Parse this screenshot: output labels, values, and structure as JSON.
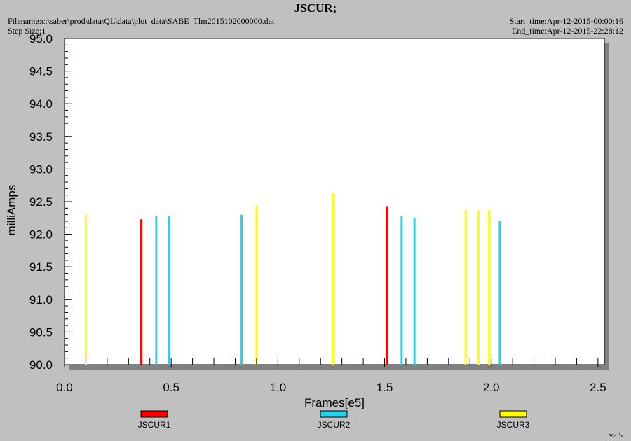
{
  "header": {
    "title": "JSCUR;",
    "filename": "Filename:c:\\saber\\prod\\data\\QL\\data\\plot_data\\SABE_Tlm2015102000000.dat",
    "step_size": "Step Size:1",
    "start_time": "Start_time:Apr-12-2015-00:00:16",
    "end_time": "End_time:Apr-12-2015-22:28:12"
  },
  "footer": {
    "version": "v2.5"
  },
  "colors": {
    "plot_bg": "#ffffff",
    "shadow": "#808080",
    "page_bg": "#c0c0c0"
  },
  "chart_data": {
    "type": "bar",
    "title": "JSCUR;",
    "xlabel": "Frames[e5]",
    "ylabel": "milliAmps",
    "xlim": [
      0.0,
      2.53
    ],
    "ylim": [
      90.0,
      95.0
    ],
    "x_ticks": [
      "0.0",
      "0.5",
      "1.0",
      "1.5",
      "2.0",
      "2.5"
    ],
    "x_tick_values": [
      0.0,
      0.5,
      1.0,
      1.5,
      2.0,
      2.5
    ],
    "y_ticks": [
      "90.0",
      "90.5",
      "91.0",
      "91.5",
      "92.0",
      "92.5",
      "93.0",
      "93.5",
      "94.0",
      "94.5",
      "95.0"
    ],
    "y_tick_values": [
      90.0,
      90.5,
      91.0,
      91.5,
      92.0,
      92.5,
      93.0,
      93.5,
      94.0,
      94.5,
      95.0
    ],
    "baseline": 90.0,
    "grid": false,
    "legend_position": "bottom",
    "series": [
      {
        "name": "JSCUR1",
        "color": "#ff0000",
        "points": [
          {
            "x": 0.36,
            "y": 92.23
          },
          {
            "x": 1.51,
            "y": 92.43
          }
        ]
      },
      {
        "name": "JSCUR2",
        "color": "#22d3ee",
        "points": [
          {
            "x": 0.43,
            "y": 92.28
          },
          {
            "x": 0.49,
            "y": 92.28
          },
          {
            "x": 0.83,
            "y": 92.3
          },
          {
            "x": 1.58,
            "y": 92.28
          },
          {
            "x": 1.64,
            "y": 92.25
          },
          {
            "x": 2.04,
            "y": 92.21
          }
        ]
      },
      {
        "name": "JSCUR3",
        "color": "#ffff00",
        "points": [
          {
            "x": 0.1,
            "y": 92.3
          },
          {
            "x": 0.9,
            "y": 92.44
          },
          {
            "x": 1.26,
            "y": 92.63
          },
          {
            "x": 1.88,
            "y": 92.37
          },
          {
            "x": 1.94,
            "y": 92.37
          },
          {
            "x": 1.99,
            "y": 92.37
          }
        ]
      }
    ]
  }
}
